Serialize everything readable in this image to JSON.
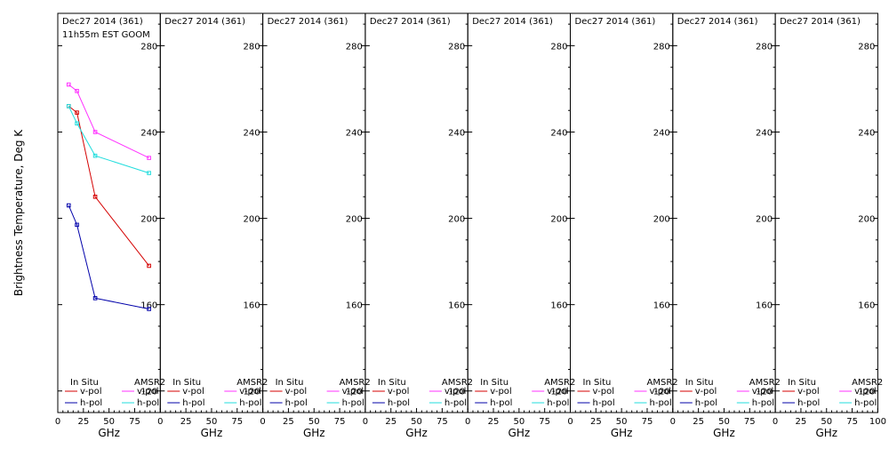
{
  "figure": {
    "ylabel": "Brightness Temperature, Deg K",
    "xlabel": "GHz",
    "subtitle": "11h55m EST GOOM"
  },
  "legend": {
    "insitu_header": "In Situ",
    "amsr2_header": "AMSR2",
    "vpol": "v-pol",
    "hpol": "h-pol"
  },
  "colors": {
    "insitu_v": "#d40000",
    "insitu_h": "#0000aa",
    "amsr2_v": "#ff33ff",
    "amsr2_h": "#22dddd"
  },
  "chart_data": [
    {
      "type": "line",
      "panel_title": "Dec27 2014 (361)",
      "xlim": [
        0,
        100
      ],
      "ylim": [
        110,
        295
      ],
      "xticks": [
        0,
        25,
        50,
        75
      ],
      "yticks": [
        120,
        160,
        200,
        240,
        280
      ],
      "series": [
        {
          "name": "In Situ v-pol",
          "x": [
            10.65,
            18.7,
            36.5,
            89.0
          ],
          "y": [
            252,
            249,
            210,
            178
          ]
        },
        {
          "name": "In Situ h-pol",
          "x": [
            10.65,
            18.7,
            36.5,
            89.0
          ],
          "y": [
            206,
            197,
            163,
            158
          ]
        },
        {
          "name": "AMSR2 v-pol",
          "x": [
            10.65,
            18.7,
            36.5,
            89.0
          ],
          "y": [
            262,
            259,
            240,
            228
          ]
        },
        {
          "name": "AMSR2 h-pol",
          "x": [
            10.65,
            18.7,
            36.5,
            89.0
          ],
          "y": [
            252,
            244,
            229,
            221
          ]
        }
      ]
    },
    {
      "type": "line",
      "panel_title": "Dec27 2014 (361)",
      "xlim": [
        0,
        100
      ],
      "ylim": [
        110,
        295
      ],
      "xticks": [
        0,
        25,
        50,
        75
      ],
      "yticks": [
        120,
        160,
        200,
        240,
        280
      ],
      "series": []
    },
    {
      "type": "line",
      "panel_title": "Dec27 2014 (361)",
      "xlim": [
        0,
        100
      ],
      "ylim": [
        110,
        295
      ],
      "xticks": [
        0,
        25,
        50,
        75
      ],
      "yticks": [
        120,
        160,
        200,
        240,
        280
      ],
      "series": []
    },
    {
      "type": "line",
      "panel_title": "Dec27 2014 (361)",
      "xlim": [
        0,
        100
      ],
      "ylim": [
        110,
        295
      ],
      "xticks": [
        0,
        25,
        50,
        75
      ],
      "yticks": [
        120,
        160,
        200,
        240,
        280
      ],
      "series": []
    },
    {
      "type": "line",
      "panel_title": "Dec27 2014 (361)",
      "xlim": [
        0,
        100
      ],
      "ylim": [
        110,
        295
      ],
      "xticks": [
        0,
        25,
        50,
        75
      ],
      "yticks": [
        120,
        160,
        200,
        240,
        280
      ],
      "series": []
    },
    {
      "type": "line",
      "panel_title": "Dec27 2014 (361)",
      "xlim": [
        0,
        100
      ],
      "ylim": [
        110,
        295
      ],
      "xticks": [
        0,
        25,
        50,
        75
      ],
      "yticks": [
        120,
        160,
        200,
        240,
        280
      ],
      "series": []
    },
    {
      "type": "line",
      "panel_title": "Dec27 2014 (361)",
      "xlim": [
        0,
        100
      ],
      "ylim": [
        110,
        295
      ],
      "xticks": [
        0,
        25,
        50,
        75
      ],
      "yticks": [
        120,
        160,
        200,
        240,
        280
      ],
      "series": []
    },
    {
      "type": "line",
      "panel_title": "Dec27 2014 (361)",
      "xlim": [
        0,
        100
      ],
      "ylim": [
        110,
        295
      ],
      "xticks": [
        0,
        25,
        50,
        75,
        100
      ],
      "yticks": [
        120,
        160,
        200,
        240,
        280
      ],
      "series": []
    }
  ]
}
